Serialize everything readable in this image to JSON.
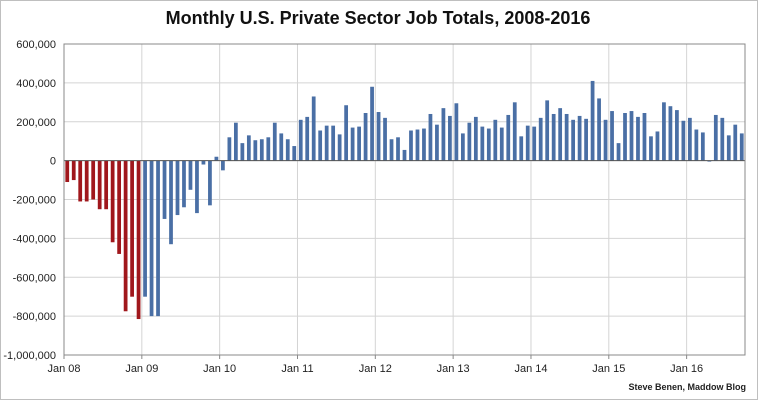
{
  "chart_data": {
    "type": "bar",
    "title": "Monthly U.S. Private Sector Job Totals, 2008-2016",
    "credit": "Steve Benen, Maddow Blog",
    "xlabel": "",
    "ylabel": "",
    "ylim": [
      -1000000,
      600000
    ],
    "y_ticks": [
      "600,000",
      "400,000",
      "200,000",
      "0",
      "-200,000",
      "-400,000",
      "-600,000",
      "-800,000",
      "-1,000,000"
    ],
    "y_tick_values": [
      600000,
      400000,
      200000,
      0,
      -200000,
      -400000,
      -600000,
      -800000,
      -1000000
    ],
    "x_tick_labels": [
      "Jan 08",
      "Jan 09",
      "Jan 10",
      "Jan 11",
      "Jan 12",
      "Jan 13",
      "Jan 14",
      "Jan 15",
      "Jan 16"
    ],
    "grid": true,
    "legend": "none",
    "colors": {
      "before_jan_2009": "#a0171c",
      "from_jan_2009": "#4a6fa5"
    },
    "start_month": "2008-01",
    "values": [
      -110000,
      -100000,
      -210000,
      -210000,
      -200000,
      -250000,
      -250000,
      -420000,
      -480000,
      -775000,
      -700000,
      -815000,
      -700000,
      -800000,
      -800000,
      -300000,
      -430000,
      -280000,
      -240000,
      -150000,
      -270000,
      -20000,
      -230000,
      20000,
      -50000,
      120000,
      195000,
      90000,
      130000,
      105000,
      110000,
      120000,
      195000,
      140000,
      110000,
      75000,
      210000,
      225000,
      330000,
      155000,
      180000,
      180000,
      135000,
      285000,
      170000,
      175000,
      245000,
      380000,
      250000,
      220000,
      110000,
      120000,
      55000,
      155000,
      160000,
      165000,
      240000,
      185000,
      270000,
      230000,
      295000,
      140000,
      195000,
      225000,
      175000,
      165000,
      210000,
      170000,
      235000,
      300000,
      125000,
      180000,
      175000,
      220000,
      310000,
      240000,
      270000,
      240000,
      210000,
      230000,
      215000,
      410000,
      320000,
      210000,
      255000,
      90000,
      245000,
      255000,
      225000,
      245000,
      125000,
      150000,
      300000,
      280000,
      260000,
      205000,
      220000,
      160000,
      145000,
      -5000,
      235000,
      220000,
      130000,
      185000,
      140000
    ]
  }
}
